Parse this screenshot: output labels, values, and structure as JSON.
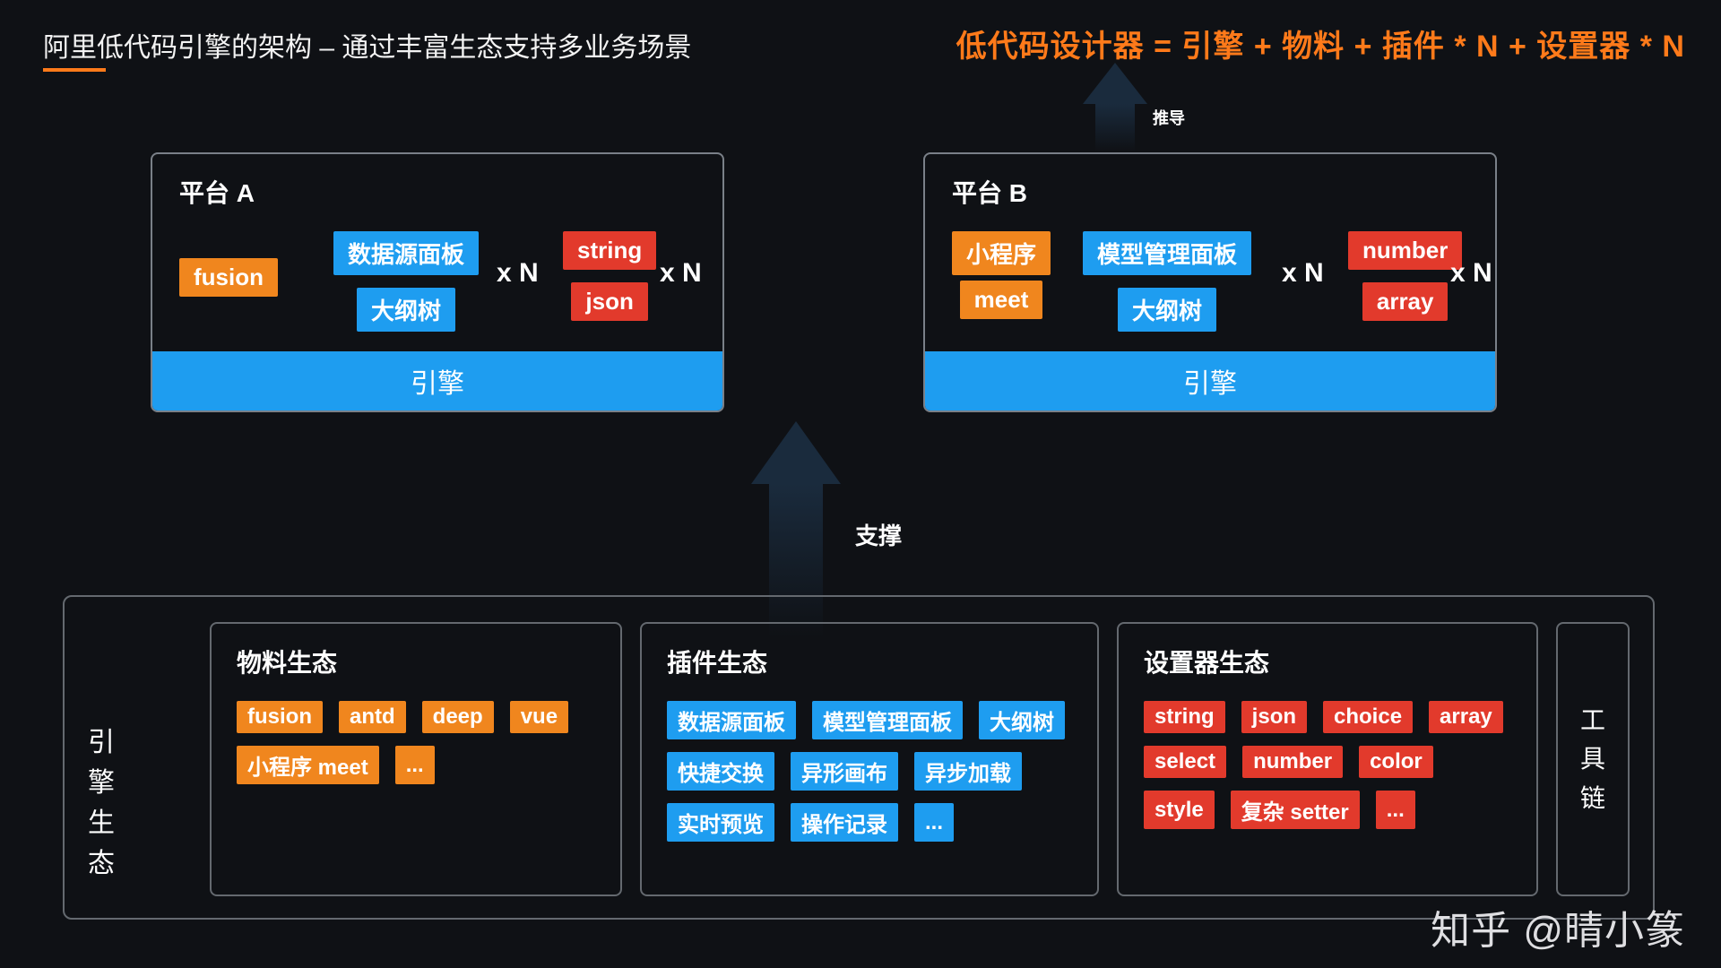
{
  "colors": {
    "bg": "#0f1115",
    "orange": "#f0861e",
    "accentOrange": "#ff7a1a",
    "blue": "#1e9df0",
    "red": "#e23a2c",
    "border": "#64696f",
    "arrow": "#1a2b3d",
    "text": "#ffffff"
  },
  "title": "阿里低代码引擎的架构 – 通过丰富生态支持多业务场景",
  "equation": "低代码设计器 = 引擎 + 物料 + 插件 * N + 设置器 * N",
  "arrows": {
    "top": "推导",
    "mid": "支撑"
  },
  "xN": "x N",
  "engineLabel": "引擎",
  "platformA": {
    "title": "平台 A",
    "material": "fusion",
    "plugins": [
      "数据源面板",
      "大纲树"
    ],
    "setters": [
      "string",
      "json"
    ]
  },
  "platformB": {
    "title": "平台 B",
    "materials": [
      "小程序",
      "meet"
    ],
    "plugins": [
      "模型管理面板",
      "大纲树"
    ],
    "setters": [
      "number",
      "array"
    ]
  },
  "ecosystem": {
    "leftLabel": "引擎生态",
    "material": {
      "title": "物料生态",
      "items": [
        "fusion",
        "antd",
        "deep",
        "vue",
        "小程序 meet",
        "..."
      ]
    },
    "plugin": {
      "title": "插件生态",
      "items": [
        "数据源面板",
        "模型管理面板",
        "大纲树",
        "快捷交换",
        "异形画布",
        "异步加载",
        "实时预览",
        "操作记录",
        "..."
      ]
    },
    "setter": {
      "title": "设置器生态",
      "items": [
        "string",
        "json",
        "choice",
        "array",
        "select",
        "number",
        "color",
        "style",
        "复杂 setter",
        "..."
      ]
    },
    "toolchain": "工具链"
  },
  "watermark": "知乎 @晴小篆"
}
